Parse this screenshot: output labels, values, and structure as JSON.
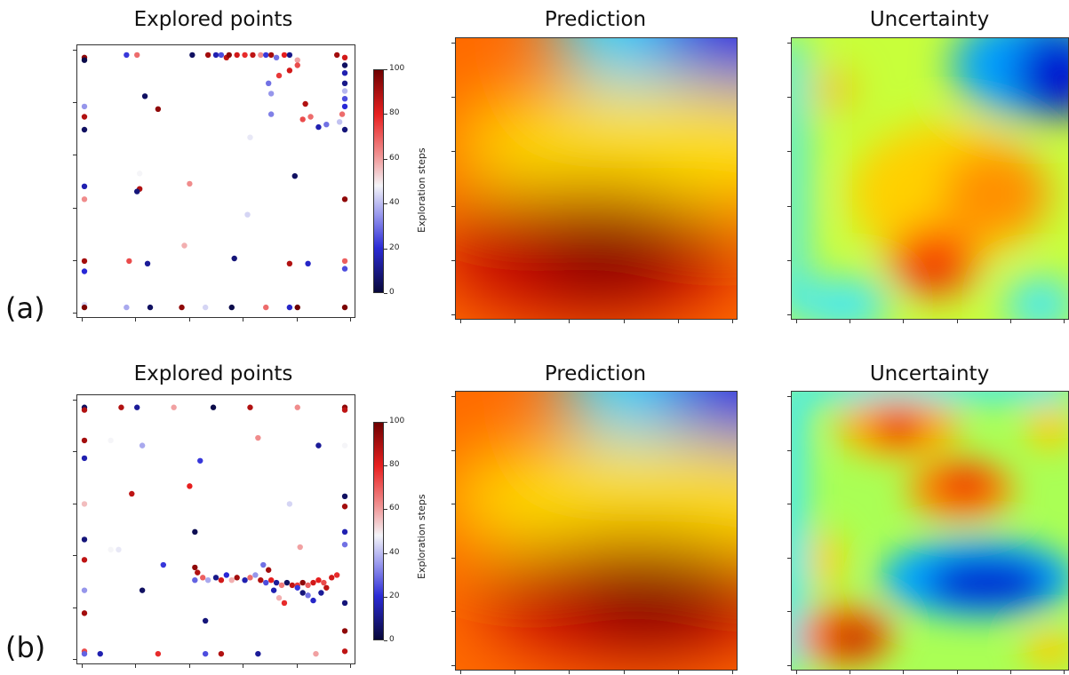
{
  "row_labels": [
    "(a)",
    "(b)"
  ],
  "panel_titles": [
    "Explored points",
    "Prediction",
    "Uncertainty"
  ],
  "colorbar": {
    "label": "Exploration steps",
    "ticks": [
      "0",
      "20",
      "40",
      "60",
      "80",
      "100"
    ]
  },
  "chart_data": [
    {
      "type": "scatter",
      "row": "(a)",
      "title": "Explored points",
      "colorbar_label": "Exploration steps",
      "color_range": [
        0,
        100
      ],
      "xlim": [
        0,
        1
      ],
      "ylim": [
        0,
        1
      ],
      "points": [
        {
          "x": 0.0,
          "y": 0.98,
          "step": 95
        },
        {
          "x": 0.0,
          "y": 0.97,
          "step": 2
        },
        {
          "x": 0.0,
          "y": 0.79,
          "step": 35
        },
        {
          "x": 0.0,
          "y": 0.75,
          "step": 90
        },
        {
          "x": 0.0,
          "y": 0.7,
          "step": 5
        },
        {
          "x": 0.0,
          "y": 0.48,
          "step": 15
        },
        {
          "x": 0.0,
          "y": 0.43,
          "step": 65
        },
        {
          "x": 0.0,
          "y": 0.19,
          "step": 92
        },
        {
          "x": 0.0,
          "y": 0.15,
          "step": 20
        },
        {
          "x": 0.0,
          "y": 0.02,
          "step": 45
        },
        {
          "x": 0.0,
          "y": 0.01,
          "step": 98
        },
        {
          "x": 0.16,
          "y": 0.99,
          "step": 22
        },
        {
          "x": 0.2,
          "y": 0.99,
          "step": 70
        },
        {
          "x": 0.23,
          "y": 0.83,
          "step": 5
        },
        {
          "x": 0.28,
          "y": 0.78,
          "step": 95
        },
        {
          "x": 0.21,
          "y": 0.47,
          "step": 90
        },
        {
          "x": 0.2,
          "y": 0.46,
          "step": 8
        },
        {
          "x": 0.21,
          "y": 0.53,
          "step": 50
        },
        {
          "x": 0.4,
          "y": 0.49,
          "step": 65
        },
        {
          "x": 0.38,
          "y": 0.25,
          "step": 60
        },
        {
          "x": 0.17,
          "y": 0.19,
          "step": 75
        },
        {
          "x": 0.24,
          "y": 0.18,
          "step": 12
        },
        {
          "x": 0.57,
          "y": 0.2,
          "step": 8
        },
        {
          "x": 0.16,
          "y": 0.01,
          "step": 38
        },
        {
          "x": 0.25,
          "y": 0.01,
          "step": 5
        },
        {
          "x": 0.37,
          "y": 0.01,
          "step": 95
        },
        {
          "x": 0.46,
          "y": 0.01,
          "step": 45
        },
        {
          "x": 0.56,
          "y": 0.01,
          "step": 2
        },
        {
          "x": 0.69,
          "y": 0.01,
          "step": 70
        },
        {
          "x": 0.78,
          "y": 0.01,
          "step": 18
        },
        {
          "x": 0.81,
          "y": 0.01,
          "step": 100
        },
        {
          "x": 0.41,
          "y": 0.99,
          "step": 5
        },
        {
          "x": 0.47,
          "y": 0.99,
          "step": 92
        },
        {
          "x": 0.5,
          "y": 0.99,
          "step": 15
        },
        {
          "x": 0.52,
          "y": 0.99,
          "step": 25
        },
        {
          "x": 0.54,
          "y": 0.98,
          "step": 88
        },
        {
          "x": 0.55,
          "y": 0.99,
          "step": 95
        },
        {
          "x": 0.58,
          "y": 0.99,
          "step": 85
        },
        {
          "x": 0.61,
          "y": 0.99,
          "step": 80
        },
        {
          "x": 0.64,
          "y": 0.99,
          "step": 88
        },
        {
          "x": 0.67,
          "y": 0.99,
          "step": 65
        },
        {
          "x": 0.69,
          "y": 0.99,
          "step": 22
        },
        {
          "x": 0.71,
          "y": 0.99,
          "step": 92
        },
        {
          "x": 0.73,
          "y": 0.98,
          "step": 30
        },
        {
          "x": 0.76,
          "y": 0.99,
          "step": 82
        },
        {
          "x": 0.78,
          "y": 0.99,
          "step": 10
        },
        {
          "x": 0.81,
          "y": 0.97,
          "step": 62
        },
        {
          "x": 0.81,
          "y": 0.95,
          "step": 75
        },
        {
          "x": 0.78,
          "y": 0.93,
          "step": 85
        },
        {
          "x": 0.74,
          "y": 0.91,
          "step": 78
        },
        {
          "x": 0.7,
          "y": 0.88,
          "step": 30
        },
        {
          "x": 0.71,
          "y": 0.84,
          "step": 35
        },
        {
          "x": 0.71,
          "y": 0.76,
          "step": 32
        },
        {
          "x": 0.84,
          "y": 0.8,
          "step": 90
        },
        {
          "x": 0.83,
          "y": 0.74,
          "step": 75
        },
        {
          "x": 0.86,
          "y": 0.75,
          "step": 70
        },
        {
          "x": 0.89,
          "y": 0.71,
          "step": 15
        },
        {
          "x": 0.92,
          "y": 0.72,
          "step": 30
        },
        {
          "x": 0.96,
          "y": 0.99,
          "step": 92
        },
        {
          "x": 0.99,
          "y": 0.98,
          "step": 85
        },
        {
          "x": 0.99,
          "y": 0.95,
          "step": 5
        },
        {
          "x": 0.99,
          "y": 0.92,
          "step": 15
        },
        {
          "x": 0.99,
          "y": 0.88,
          "step": 10
        },
        {
          "x": 0.99,
          "y": 0.85,
          "step": 40
        },
        {
          "x": 0.99,
          "y": 0.82,
          "step": 25
        },
        {
          "x": 0.99,
          "y": 0.79,
          "step": 20
        },
        {
          "x": 0.98,
          "y": 0.76,
          "step": 70
        },
        {
          "x": 0.97,
          "y": 0.73,
          "step": 42
        },
        {
          "x": 0.99,
          "y": 0.7,
          "step": 8
        },
        {
          "x": 0.99,
          "y": 0.43,
          "step": 95
        },
        {
          "x": 0.99,
          "y": 0.19,
          "step": 72
        },
        {
          "x": 0.99,
          "y": 0.16,
          "step": 25
        },
        {
          "x": 0.99,
          "y": 0.01,
          "step": 98
        },
        {
          "x": 0.8,
          "y": 0.52,
          "step": 5
        },
        {
          "x": 0.62,
          "y": 0.37,
          "step": 45
        },
        {
          "x": 0.78,
          "y": 0.18,
          "step": 90
        },
        {
          "x": 0.85,
          "y": 0.18,
          "step": 18
        },
        {
          "x": 0.63,
          "y": 0.67,
          "step": 48
        }
      ]
    },
    {
      "type": "heatmap",
      "row": "(a)",
      "title": "Prediction"
    },
    {
      "type": "heatmap",
      "row": "(a)",
      "title": "Uncertainty"
    },
    {
      "type": "scatter",
      "row": "(b)",
      "title": "Explored points",
      "colorbar_label": "Exploration steps",
      "color_range": [
        0,
        100
      ],
      "xlim": [
        0,
        1
      ],
      "ylim": [
        0,
        1
      ],
      "points": [
        {
          "x": 0.0,
          "y": 0.98,
          "step": 5
        },
        {
          "x": 0.0,
          "y": 0.97,
          "step": 90
        },
        {
          "x": 0.0,
          "y": 0.85,
          "step": 92
        },
        {
          "x": 0.0,
          "y": 0.78,
          "step": 15
        },
        {
          "x": 0.0,
          "y": 0.6,
          "step": 58
        },
        {
          "x": 0.0,
          "y": 0.46,
          "step": 8
        },
        {
          "x": 0.0,
          "y": 0.38,
          "step": 88
        },
        {
          "x": 0.0,
          "y": 0.26,
          "step": 35
        },
        {
          "x": 0.0,
          "y": 0.17,
          "step": 92
        },
        {
          "x": 0.0,
          "y": 0.02,
          "step": 75
        },
        {
          "x": 0.0,
          "y": 0.01,
          "step": 28
        },
        {
          "x": 0.1,
          "y": 0.85,
          "step": 50
        },
        {
          "x": 0.14,
          "y": 0.98,
          "step": 90
        },
        {
          "x": 0.2,
          "y": 0.98,
          "step": 12
        },
        {
          "x": 0.18,
          "y": 0.64,
          "step": 88
        },
        {
          "x": 0.13,
          "y": 0.42,
          "step": 48
        },
        {
          "x": 0.22,
          "y": 0.83,
          "step": 38
        },
        {
          "x": 0.34,
          "y": 0.98,
          "step": 62
        },
        {
          "x": 0.49,
          "y": 0.98,
          "step": 2
        },
        {
          "x": 0.63,
          "y": 0.98,
          "step": 90
        },
        {
          "x": 0.66,
          "y": 0.86,
          "step": 65
        },
        {
          "x": 0.44,
          "y": 0.77,
          "step": 22
        },
        {
          "x": 0.4,
          "y": 0.67,
          "step": 82
        },
        {
          "x": 0.42,
          "y": 0.49,
          "step": 3
        },
        {
          "x": 0.22,
          "y": 0.26,
          "step": 5
        },
        {
          "x": 0.46,
          "y": 0.14,
          "step": 8
        },
        {
          "x": 0.81,
          "y": 0.98,
          "step": 65
        },
        {
          "x": 0.89,
          "y": 0.83,
          "step": 12
        },
        {
          "x": 0.99,
          "y": 0.98,
          "step": 95
        },
        {
          "x": 0.99,
          "y": 0.97,
          "step": 88
        },
        {
          "x": 0.99,
          "y": 0.83,
          "step": 50
        },
        {
          "x": 0.99,
          "y": 0.63,
          "step": 5
        },
        {
          "x": 0.99,
          "y": 0.59,
          "step": 92
        },
        {
          "x": 0.99,
          "y": 0.49,
          "step": 15
        },
        {
          "x": 0.99,
          "y": 0.44,
          "step": 30
        },
        {
          "x": 0.99,
          "y": 0.21,
          "step": 8
        },
        {
          "x": 0.99,
          "y": 0.1,
          "step": 95
        },
        {
          "x": 0.99,
          "y": 0.02,
          "step": 88
        },
        {
          "x": 0.78,
          "y": 0.6,
          "step": 45
        },
        {
          "x": 0.82,
          "y": 0.43,
          "step": 62
        },
        {
          "x": 0.1,
          "y": 0.42,
          "step": 50
        },
        {
          "x": 0.06,
          "y": 0.01,
          "step": 15
        },
        {
          "x": 0.28,
          "y": 0.01,
          "step": 80
        },
        {
          "x": 0.46,
          "y": 0.01,
          "step": 25
        },
        {
          "x": 0.52,
          "y": 0.01,
          "step": 90
        },
        {
          "x": 0.66,
          "y": 0.01,
          "step": 12
        },
        {
          "x": 0.88,
          "y": 0.01,
          "step": 62
        },
        {
          "x": 0.43,
          "y": 0.33,
          "step": 90
        },
        {
          "x": 0.42,
          "y": 0.3,
          "step": 28
        },
        {
          "x": 0.45,
          "y": 0.31,
          "step": 72
        },
        {
          "x": 0.47,
          "y": 0.3,
          "step": 38
        },
        {
          "x": 0.5,
          "y": 0.31,
          "step": 10
        },
        {
          "x": 0.52,
          "y": 0.3,
          "step": 85
        },
        {
          "x": 0.54,
          "y": 0.32,
          "step": 20
        },
        {
          "x": 0.56,
          "y": 0.3,
          "step": 60
        },
        {
          "x": 0.58,
          "y": 0.31,
          "step": 92
        },
        {
          "x": 0.61,
          "y": 0.3,
          "step": 15
        },
        {
          "x": 0.63,
          "y": 0.31,
          "step": 70
        },
        {
          "x": 0.65,
          "y": 0.32,
          "step": 35
        },
        {
          "x": 0.67,
          "y": 0.3,
          "step": 90
        },
        {
          "x": 0.69,
          "y": 0.29,
          "step": 25
        },
        {
          "x": 0.71,
          "y": 0.3,
          "step": 82
        },
        {
          "x": 0.73,
          "y": 0.29,
          "step": 12
        },
        {
          "x": 0.75,
          "y": 0.28,
          "step": 68
        },
        {
          "x": 0.77,
          "y": 0.29,
          "step": 5
        },
        {
          "x": 0.79,
          "y": 0.28,
          "step": 88
        },
        {
          "x": 0.81,
          "y": 0.28,
          "step": 78
        },
        {
          "x": 0.83,
          "y": 0.29,
          "step": 95
        },
        {
          "x": 0.85,
          "y": 0.28,
          "step": 72
        },
        {
          "x": 0.87,
          "y": 0.29,
          "step": 85
        },
        {
          "x": 0.89,
          "y": 0.3,
          "step": 82
        },
        {
          "x": 0.91,
          "y": 0.29,
          "step": 75
        },
        {
          "x": 0.94,
          "y": 0.31,
          "step": 85
        },
        {
          "x": 0.96,
          "y": 0.32,
          "step": 80
        },
        {
          "x": 0.72,
          "y": 0.26,
          "step": 15
        },
        {
          "x": 0.74,
          "y": 0.23,
          "step": 60
        },
        {
          "x": 0.76,
          "y": 0.21,
          "step": 80
        },
        {
          "x": 0.81,
          "y": 0.27,
          "step": 22
        },
        {
          "x": 0.83,
          "y": 0.25,
          "step": 8
        },
        {
          "x": 0.85,
          "y": 0.24,
          "step": 30
        },
        {
          "x": 0.87,
          "y": 0.22,
          "step": 18
        },
        {
          "x": 0.9,
          "y": 0.25,
          "step": 12
        },
        {
          "x": 0.92,
          "y": 0.27,
          "step": 88
        },
        {
          "x": 0.68,
          "y": 0.36,
          "step": 30
        },
        {
          "x": 0.7,
          "y": 0.34,
          "step": 92
        },
        {
          "x": 0.42,
          "y": 0.35,
          "step": 95
        },
        {
          "x": 0.3,
          "y": 0.36,
          "step": 22
        }
      ]
    },
    {
      "type": "heatmap",
      "row": "(b)",
      "title": "Prediction"
    },
    {
      "type": "heatmap",
      "row": "(b)",
      "title": "Uncertainty"
    }
  ]
}
